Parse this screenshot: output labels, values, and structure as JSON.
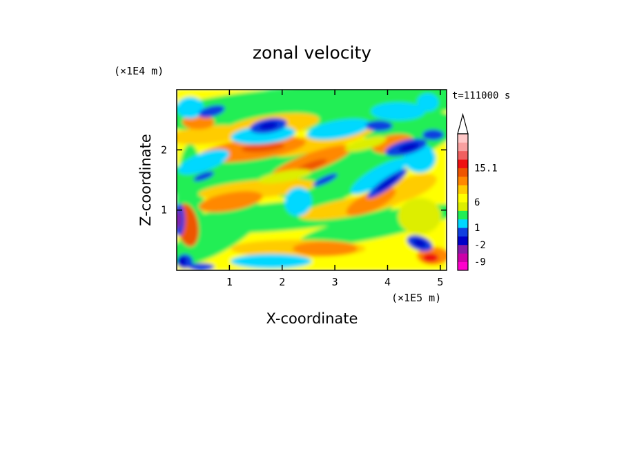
{
  "chart_data": {
    "type": "heatmap",
    "title": "zonal velocity",
    "xlabel": "X-coordinate",
    "ylabel": "Z-coordinate",
    "x_unit": "(×1E5 m)",
    "y_unit": "(×1E4 m)",
    "time_label": "t=111000 s",
    "xlim": [
      0,
      5.12
    ],
    "ylim": [
      0,
      3.0
    ],
    "x_ticks": [
      "1",
      "2",
      "3",
      "4",
      "5"
    ],
    "x_tick_values": [
      1,
      2,
      3,
      4,
      5
    ],
    "y_ticks": [
      "1",
      "2"
    ],
    "y_tick_values": [
      1,
      2
    ],
    "colorbar": {
      "labels": [
        "15.1",
        "6",
        "1",
        "-2",
        "-9"
      ],
      "label_positions": [
        12,
        8,
        5,
        3,
        1
      ],
      "colors": [
        "#ff00cc",
        "#cc00a8",
        "#881aa8",
        "#0000c8",
        "#1040e0",
        "#00d8ff",
        "#22ee55",
        "#ddee00",
        "#ffff00",
        "#ffcc00",
        "#ff8800",
        "#ee5500",
        "#ee1111",
        "#f06060",
        "#f8a0a0",
        "#ffc8c8"
      ]
    },
    "grid": false,
    "legend": "colorbar-right"
  }
}
